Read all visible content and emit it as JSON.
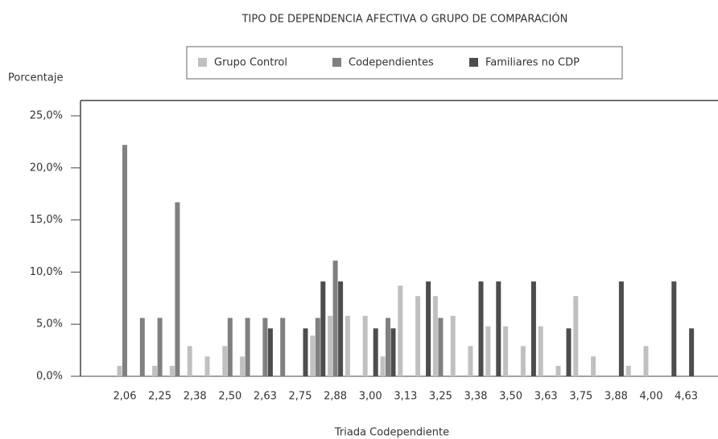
{
  "chart_data": {
    "type": "bar",
    "title": "TIPO DE DEPENDENCIA AFECTIVA O GRUPO DE COMPARACIÓN",
    "y_label": "Porcentaje",
    "x_label": "Triada Codependiente",
    "categories": [
      "2,06",
      null,
      "2,25",
      null,
      "2,38",
      null,
      "2,50",
      null,
      "2,63",
      null,
      "2,75",
      null,
      "2,88",
      null,
      "3,00",
      null,
      "3,13",
      null,
      "3,25",
      null,
      "3,38",
      null,
      "3,50",
      null,
      "3,63",
      null,
      "3,75",
      null,
      "3,88",
      null,
      "4,00",
      null,
      "4,63"
    ],
    "series": [
      {
        "name": "Grupo Control",
        "color": "#c0c0c0",
        "values": [
          1.0,
          0,
          1.0,
          1.0,
          2.9,
          1.9,
          2.9,
          1.9,
          0,
          0,
          0,
          3.9,
          5.8,
          5.8,
          5.8,
          1.9,
          8.7,
          7.7,
          7.7,
          5.8,
          2.9,
          4.8,
          4.8,
          2.9,
          4.8,
          1.0,
          7.7,
          1.9,
          0,
          1.0,
          2.9,
          0,
          0
        ]
      },
      {
        "name": "Codependientes",
        "color": "#808080",
        "values": [
          22.2,
          5.6,
          5.6,
          16.7,
          0,
          0,
          5.6,
          5.6,
          5.6,
          5.6,
          0,
          5.6,
          11.1,
          0,
          0,
          5.6,
          0,
          0,
          5.6,
          0,
          0,
          0,
          0,
          0,
          0,
          0,
          0,
          0,
          0,
          0,
          0,
          0,
          0
        ]
      },
      {
        "name": "Familiares no CDP",
        "color": "#4d4d4d",
        "values": [
          0,
          0,
          0,
          0,
          0,
          0,
          0,
          0,
          4.6,
          0,
          4.6,
          9.1,
          9.1,
          0,
          4.6,
          4.6,
          0,
          9.1,
          0,
          0,
          9.1,
          9.1,
          0,
          9.1,
          0,
          4.6,
          0,
          0,
          9.1,
          0,
          0,
          9.1,
          4.6
        ]
      }
    ],
    "ylim": [
      0,
      25
    ],
    "yticks": [
      {
        "value": 0,
        "label": "0,0%"
      },
      {
        "value": 5,
        "label": "5,0%"
      },
      {
        "value": 10,
        "label": "10,0%"
      },
      {
        "value": 15,
        "label": "15,0%"
      },
      {
        "value": 20,
        "label": "20,0%"
      },
      {
        "value": 25,
        "label": "25,0%"
      }
    ],
    "legend": "top"
  }
}
